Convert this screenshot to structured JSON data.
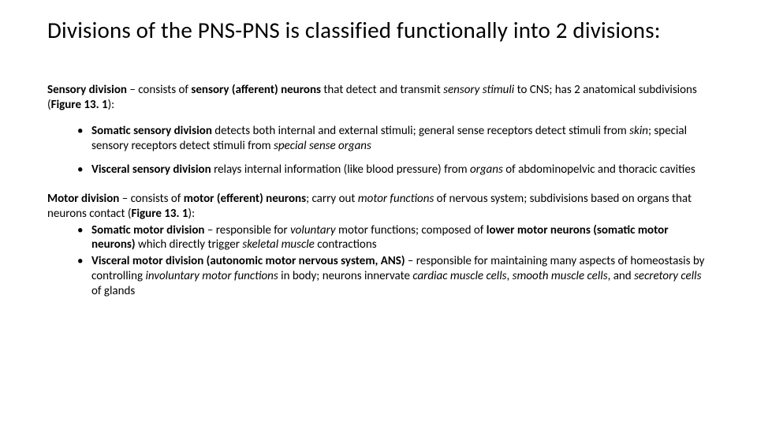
{
  "colors": {
    "bg": "#ffffff",
    "text": "#000000"
  },
  "typography": {
    "title_fontsize": 29,
    "body_fontsize": 15,
    "font_family": "Calibri"
  },
  "title": "Divisions of the PNS-PNS is classified functionally into 2 divisions:",
  "sensory": {
    "lead_bold": "Sensory division",
    "lead_rest_1": " – consists of ",
    "lead_bold2": "sensory (afferent) neurons",
    "lead_rest_2": " that detect and transmit ",
    "lead_ital": "sensory stimuli",
    "lead_rest_3": " to CNS; has 2 anatomical subdivisions (",
    "lead_bold3": "Figure 13. 1",
    "lead_rest_4": "):",
    "items": [
      {
        "bold1": "Somatic sensory division",
        "t1": " detects both internal and external stimuli; general sense receptors detect stimuli from ",
        "i1": "skin",
        "t2": "; special sensory receptors detect stimuli from ",
        "i2": "special sense organs"
      },
      {
        "bold1": "Visceral sensory division",
        "t1": " relays internal information (like blood pressure) from ",
        "i1": "organs",
        "t2": " of abdominopelvic and thoracic cavities",
        "i2": ""
      }
    ]
  },
  "motor": {
    "lead_bold": "Motor division",
    "lead_rest_1": " – consists of ",
    "lead_bold2": "motor (efferent) neurons",
    "lead_rest_2": "; carry out ",
    "lead_ital": "motor functions",
    "lead_rest_3": " of nervous system; subdivisions based on organs that neurons contact (",
    "lead_bold3": "Figure 13. 1",
    "lead_rest_4": "):",
    "items": [
      {
        "bold1": "Somatic motor division",
        "t1": " – responsible for ",
        "i1": "voluntary",
        "t2": " motor functions; composed of ",
        "bold2": "lower motor neurons (somatic motor neurons)",
        "t3": " which directly trigger ",
        "i2": "skeletal muscle",
        "t4": " contractions"
      },
      {
        "bold1": "Visceral motor division (autonomic motor nervous system, ANS)",
        "t1": " – responsible for maintaining many aspects of homeostasis by controlling ",
        "i1": "involuntary motor functions",
        "t2": " in body; neurons innervate ",
        "i2": "cardiac muscle cells",
        "t3": ", ",
        "i3": "smooth muscle cells",
        "t4": ", and ",
        "i4": "secretory cells",
        "t5": " of glands"
      }
    ]
  }
}
